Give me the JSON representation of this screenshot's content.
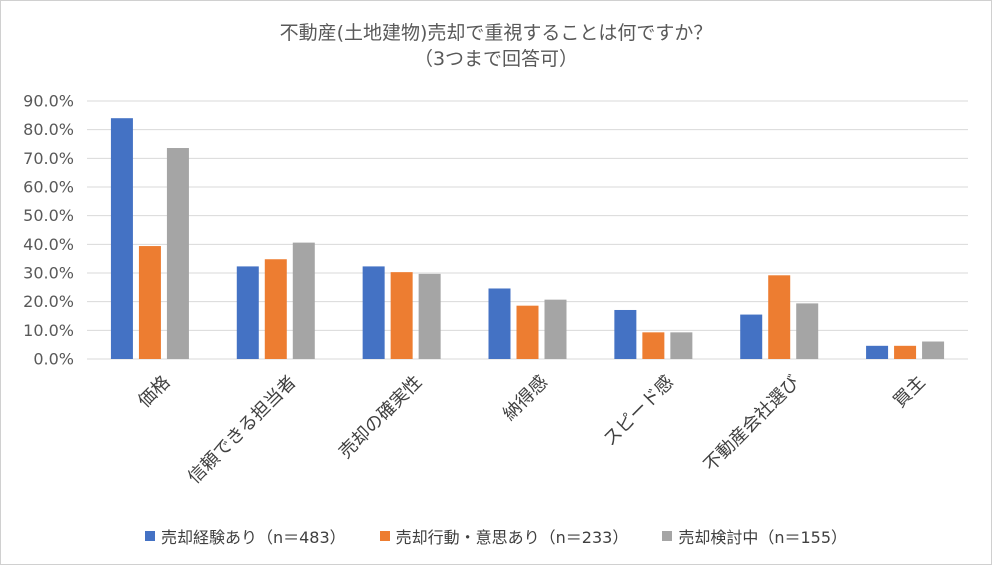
{
  "chart_data": {
    "type": "bar",
    "title": "不動産(土地建物)売却で重視することは何ですか？",
    "subtitle": "（3つまで回答可）",
    "xlabel": "",
    "ylabel": "",
    "ylim": [
      0,
      90
    ],
    "yticks": [
      0,
      10,
      20,
      30,
      40,
      50,
      60,
      70,
      80,
      90
    ],
    "ytick_labels": [
      "0.0%",
      "10.0%",
      "20.0%",
      "30.0%",
      "40.0%",
      "50.0%",
      "60.0%",
      "70.0%",
      "80.0%",
      "90.0%"
    ],
    "grid": true,
    "legend_position": "bottom",
    "categories": [
      "価格",
      "信頼できる担当者",
      "売却の確実性",
      "納得感",
      "スピード感",
      "不動産会社選び",
      "買主"
    ],
    "series": [
      {
        "name": "売却経験あり（n＝483）",
        "color": "#4472c4",
        "values": [
          84.0,
          32.3,
          32.3,
          24.6,
          17.1,
          15.5,
          4.6
        ]
      },
      {
        "name": "売却行動・意思あり（n＝233）",
        "color": "#ed7d31",
        "values": [
          39.4,
          34.8,
          30.3,
          18.6,
          9.3,
          29.2,
          4.6
        ]
      },
      {
        "name": "売却検討中（n＝155）",
        "color": "#a5a5a5",
        "values": [
          73.6,
          40.6,
          29.7,
          20.7,
          9.3,
          19.4,
          6.1
        ]
      }
    ]
  }
}
